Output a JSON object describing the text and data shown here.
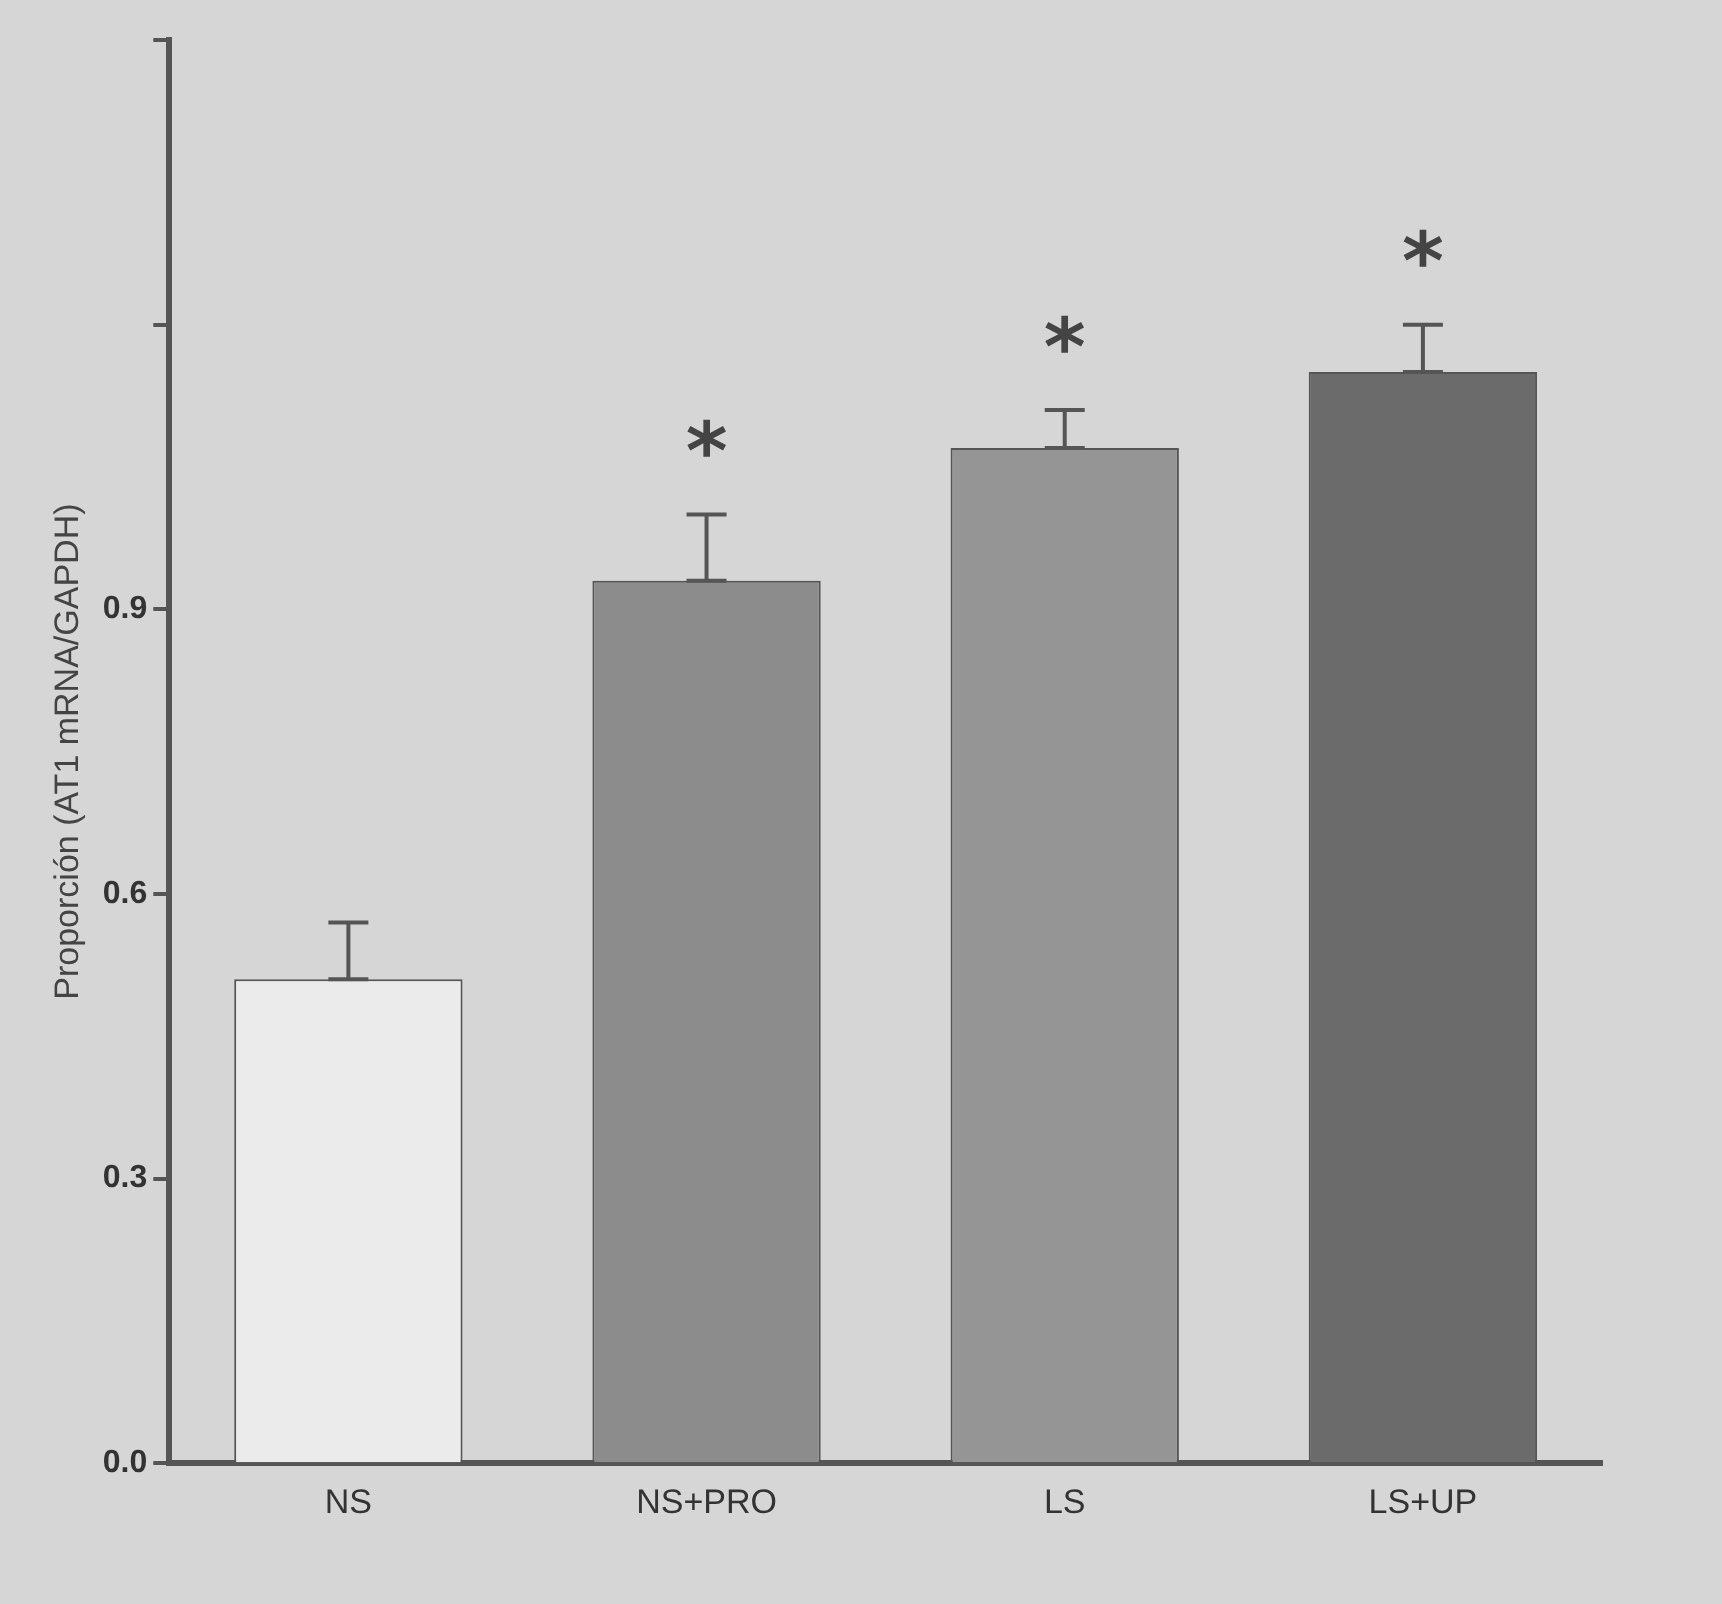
{
  "chart_data": {
    "type": "bar",
    "ylabel": "Proporción (AT1 mRNA/GAPDH)",
    "categories": [
      "NS",
      "NS+PRO",
      "LS",
      "LS+UP"
    ],
    "values": [
      0.51,
      0.93,
      1.07,
      1.15
    ],
    "colors": [
      "#ebebeb",
      "#8c8c8c",
      "#959595",
      "#6b6b6b"
    ],
    "errors": [
      [
        0.51,
        0.57
      ],
      [
        0.93,
        1.0
      ],
      [
        1.07,
        1.11
      ],
      [
        1.15,
        1.2
      ]
    ],
    "ylim": [
      0,
      1.5
    ],
    "yticks": [
      {
        "value": 0,
        "label": "0.0"
      },
      0.3,
      0.6,
      0.9,
      {
        "value": 1.2,
        "label": null
      },
      {
        "value": 1.5,
        "label": null
      }
    ],
    "annotations": [
      "*",
      "*",
      "*"
    ],
    "grid": false,
    "legend": false
  }
}
